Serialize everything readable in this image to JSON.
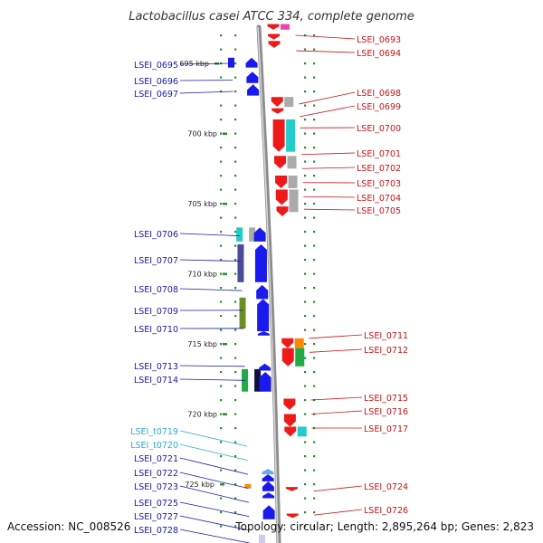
{
  "title": "Lactobacillus casei ATCC 334, complete genome",
  "footer": {
    "accession": "Accession: NC_008526",
    "topology": "Topology: circular; Length: 2,895,264 bp; Genes: 2,823"
  },
  "colors": {
    "forward_label": "#1a1aa8",
    "reverse_label": "#c81414",
    "rna_label": "#33aacc",
    "backbone": "#8c8c8c",
    "tick": "#2e8b2e"
  },
  "ticks": [
    {
      "label": "695 kbp",
      "kbp": 695
    },
    {
      "label": "700 kbp",
      "kbp": 700
    },
    {
      "label": "705 kbp",
      "kbp": 705
    },
    {
      "label": "710 kbp",
      "kbp": 710
    },
    {
      "label": "715 kbp",
      "kbp": 715
    },
    {
      "label": "720 kbp",
      "kbp": 720
    },
    {
      "label": "725 kbp",
      "kbp": 725
    }
  ],
  "forward_genes": [
    {
      "label": "LSEI_0695",
      "kbp": 695.0,
      "color": "#1a1aa8"
    },
    {
      "label": "LSEI_0696",
      "kbp": 696.2,
      "color": "#1a1aa8"
    },
    {
      "label": "LSEI_0697",
      "kbp": 697.0,
      "color": "#1a1aa8"
    },
    {
      "label": "LSEI_0706",
      "kbp": 707.3,
      "color": "#1a1aa8"
    },
    {
      "label": "LSEI_0707",
      "kbp": 709.1,
      "color": "#1a1aa8"
    },
    {
      "label": "LSEI_0708",
      "kbp": 711.2,
      "color": "#1a1aa8"
    },
    {
      "label": "LSEI_0709",
      "kbp": 712.6,
      "color": "#1a1aa8"
    },
    {
      "label": "LSEI_0710",
      "kbp": 713.9,
      "color": "#1a1aa8"
    },
    {
      "label": "LSEI_0713",
      "kbp": 716.6,
      "color": "#1a1aa8"
    },
    {
      "label": "LSEI_0714",
      "kbp": 717.6,
      "color": "#1a1aa8"
    },
    {
      "label": "LSEI_t0719",
      "kbp": 722.3,
      "color": "#33aacc"
    },
    {
      "label": "LSEI_t0720",
      "kbp": 723.3,
      "color": "#33aacc"
    },
    {
      "label": "LSEI_0721",
      "kbp": 724.3,
      "color": "#1a1aa8"
    },
    {
      "label": "LSEI_0722",
      "kbp": 725.3,
      "color": "#1a1aa8"
    },
    {
      "label": "LSEI_0723",
      "kbp": 726.3,
      "color": "#1a1aa8"
    },
    {
      "label": "LSEI_0725",
      "kbp": 727.3,
      "color": "#1a1aa8"
    },
    {
      "label": "LSEI_0727",
      "kbp": 728.3,
      "color": "#1a1aa8"
    },
    {
      "label": "LSEI_0728",
      "kbp": 729.2,
      "color": "#1a1aa8"
    }
  ],
  "reverse_genes": [
    {
      "label": "LSEI_0693",
      "kbp": 693.0
    },
    {
      "label": "LSEI_0694",
      "kbp": 694.1
    },
    {
      "label": "LSEI_0698",
      "kbp": 697.9
    },
    {
      "label": "LSEI_0699",
      "kbp": 698.8
    },
    {
      "label": "LSEI_0700",
      "kbp": 699.6
    },
    {
      "label": "LSEI_0701",
      "kbp": 701.5
    },
    {
      "label": "LSEI_0702",
      "kbp": 702.5
    },
    {
      "label": "LSEI_0703",
      "kbp": 703.5
    },
    {
      "label": "LSEI_0704",
      "kbp": 704.5
    },
    {
      "label": "LSEI_0705",
      "kbp": 705.4
    },
    {
      "label": "LSEI_0711",
      "kbp": 714.6
    },
    {
      "label": "LSEI_0712",
      "kbp": 715.6
    },
    {
      "label": "LSEI_0715",
      "kbp": 719.0
    },
    {
      "label": "LSEI_0716",
      "kbp": 720.0
    },
    {
      "label": "LSEI_0717",
      "kbp": 721.0
    },
    {
      "label": "LSEI_0724",
      "kbp": 725.5
    },
    {
      "label": "LSEI_0726",
      "kbp": 727.2
    }
  ],
  "forward_features": [
    {
      "start": 694.6,
      "end": 695.3,
      "color": "#1a1aee",
      "kind": "arrow"
    },
    {
      "start": 695.6,
      "end": 696.4,
      "color": "#1a1aee",
      "kind": "arrow"
    },
    {
      "start": 696.5,
      "end": 697.3,
      "color": "#1a1aee",
      "kind": "arrow"
    },
    {
      "start": 694.6,
      "end": 695.3,
      "color": "#1a1aee",
      "kind": "box",
      "col": 1
    },
    {
      "start": 706.7,
      "end": 707.7,
      "color": "#22cccc",
      "kind": "box",
      "col": 1
    },
    {
      "start": 706.7,
      "end": 707.7,
      "color": "#aaaaaa",
      "kind": "box",
      "col": 2
    },
    {
      "start": 706.7,
      "end": 707.7,
      "color": "#1a1aee",
      "kind": "arrow"
    },
    {
      "start": 707.9,
      "end": 710.6,
      "color": "#4b4b9a",
      "kind": "box",
      "col": 1
    },
    {
      "start": 707.9,
      "end": 710.6,
      "color": "#1a1aee",
      "kind": "arrow"
    },
    {
      "start": 710.8,
      "end": 711.8,
      "color": "#1a1aee",
      "kind": "arrow"
    },
    {
      "start": 711.7,
      "end": 713.9,
      "color": "#6b8e23",
      "kind": "box",
      "col": 1
    },
    {
      "start": 711.8,
      "end": 714.1,
      "color": "#1a1aee",
      "kind": "arrow"
    },
    {
      "start": 714.1,
      "end": 714.4,
      "color": "#1a1aee",
      "kind": "arrow"
    },
    {
      "start": 716.8,
      "end": 718.4,
      "color": "#22aa44",
      "kind": "box",
      "col": 1
    },
    {
      "start": 716.8,
      "end": 718.4,
      "color": "#101040",
      "kind": "box",
      "col": 2
    },
    {
      "start": 716.4,
      "end": 716.9,
      "color": "#1a1aee",
      "kind": "arrow"
    },
    {
      "start": 717.0,
      "end": 718.4,
      "color": "#1a1aee",
      "kind": "arrow"
    },
    {
      "start": 723.9,
      "end": 724.3,
      "color": "#66aaee",
      "kind": "arrow"
    },
    {
      "start": 724.3,
      "end": 724.8,
      "color": "#1a1aee",
      "kind": "arrow"
    },
    {
      "start": 724.8,
      "end": 725.5,
      "color": "#1a1aee",
      "kind": "arrow"
    },
    {
      "start": 725.0,
      "end": 725.3,
      "color": "#ff8800",
      "kind": "box",
      "col": 1
    },
    {
      "start": 725.6,
      "end": 726.0,
      "color": "#1a1aee",
      "kind": "arrow"
    },
    {
      "start": 726.5,
      "end": 727.5,
      "color": "#1a1aee",
      "kind": "arrow"
    },
    {
      "start": 728.6,
      "end": 729.6,
      "color": "#ccccee",
      "kind": "box",
      "col": 2
    }
  ],
  "reverse_features": [
    {
      "start": 692.2,
      "end": 692.6,
      "color": "#ee1a1a",
      "kind": "arrow"
    },
    {
      "start": 692.2,
      "end": 692.6,
      "color": "#ee44aa",
      "kind": "box",
      "col": 1
    },
    {
      "start": 692.9,
      "end": 693.3,
      "color": "#ee1a1a",
      "kind": "arrow"
    },
    {
      "start": 693.4,
      "end": 693.9,
      "color": "#ee1a1a",
      "kind": "arrow"
    },
    {
      "start": 697.4,
      "end": 698.1,
      "color": "#ee1a1a",
      "kind": "arrow"
    },
    {
      "start": 697.4,
      "end": 698.1,
      "color": "#aaaaaa",
      "kind": "box",
      "col": 1
    },
    {
      "start": 698.2,
      "end": 698.6,
      "color": "#ee1a1a",
      "kind": "arrow"
    },
    {
      "start": 699.0,
      "end": 701.3,
      "color": "#ee1a1a",
      "kind": "arrow"
    },
    {
      "start": 699.0,
      "end": 701.3,
      "color": "#22cccc",
      "kind": "box",
      "col": 1
    },
    {
      "start": 701.6,
      "end": 702.5,
      "color": "#ee1a1a",
      "kind": "arrow"
    },
    {
      "start": 701.6,
      "end": 702.5,
      "color": "#aaaaaa",
      "kind": "box",
      "col": 1
    },
    {
      "start": 703.0,
      "end": 703.9,
      "color": "#ee1a1a",
      "kind": "arrow"
    },
    {
      "start": 703.0,
      "end": 703.9,
      "color": "#aaaaaa",
      "kind": "box",
      "col": 1
    },
    {
      "start": 704.0,
      "end": 705.1,
      "color": "#ee1a1a",
      "kind": "arrow"
    },
    {
      "start": 704.0,
      "end": 705.6,
      "color": "#aaaaaa",
      "kind": "box",
      "col": 1
    },
    {
      "start": 705.2,
      "end": 705.9,
      "color": "#ee1a1a",
      "kind": "arrow"
    },
    {
      "start": 714.6,
      "end": 715.3,
      "color": "#ee1a1a",
      "kind": "arrow"
    },
    {
      "start": 714.6,
      "end": 715.3,
      "color": "#ff8800",
      "kind": "box",
      "col": 1
    },
    {
      "start": 715.3,
      "end": 716.6,
      "color": "#ee1a1a",
      "kind": "arrow"
    },
    {
      "start": 715.3,
      "end": 716.6,
      "color": "#22aa44",
      "kind": "box",
      "col": 1
    },
    {
      "start": 718.9,
      "end": 719.7,
      "color": "#ee1a1a",
      "kind": "arrow"
    },
    {
      "start": 720.0,
      "end": 720.9,
      "color": "#ee1a1a",
      "kind": "arrow"
    },
    {
      "start": 720.9,
      "end": 721.6,
      "color": "#ee1a1a",
      "kind": "arrow"
    },
    {
      "start": 720.9,
      "end": 721.6,
      "color": "#22cccc",
      "kind": "box",
      "col": 1
    },
    {
      "start": 725.2,
      "end": 725.5,
      "color": "#ee1a1a",
      "kind": "arrow"
    },
    {
      "start": 727.1,
      "end": 727.4,
      "color": "#ee1a1a",
      "kind": "arrow"
    }
  ]
}
